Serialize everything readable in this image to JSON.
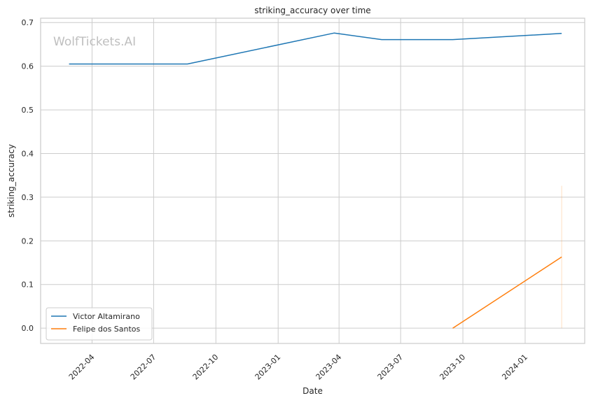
{
  "chart_data": {
    "type": "line",
    "title": "striking_accuracy over time",
    "xlabel": "Date",
    "ylabel": "striking_accuracy",
    "watermark": "WolfTickets.AI",
    "xlim": [
      "2022-01-15",
      "2024-03-29"
    ],
    "ylim": [
      -0.035,
      0.71
    ],
    "grid": true,
    "legend_position": "lower-left",
    "x_ticks": [
      {
        "date": "2022-04-01",
        "label": "2022-04"
      },
      {
        "date": "2022-07-01",
        "label": "2022-07"
      },
      {
        "date": "2022-10-01",
        "label": "2022-10"
      },
      {
        "date": "2023-01-01",
        "label": "2023-01"
      },
      {
        "date": "2023-04-01",
        "label": "2023-04"
      },
      {
        "date": "2023-07-01",
        "label": "2023-07"
      },
      {
        "date": "2023-10-01",
        "label": "2023-10"
      },
      {
        "date": "2024-01-01",
        "label": "2024-01"
      }
    ],
    "y_ticks": [
      {
        "value": 0.0,
        "label": "0.0"
      },
      {
        "value": 0.1,
        "label": "0.1"
      },
      {
        "value": 0.2,
        "label": "0.2"
      },
      {
        "value": 0.3,
        "label": "0.3"
      },
      {
        "value": 0.4,
        "label": "0.4"
      },
      {
        "value": 0.5,
        "label": "0.5"
      },
      {
        "value": 0.6,
        "label": "0.6"
      },
      {
        "value": 0.7,
        "label": "0.7"
      }
    ],
    "series": [
      {
        "name": "Victor Altamirano",
        "color": "#1f77b4",
        "points": [
          {
            "x": "2022-02-26",
            "y": 0.605
          },
          {
            "x": "2022-08-20",
            "y": 0.605
          },
          {
            "x": "2023-03-25",
            "y": 0.676
          },
          {
            "x": "2023-06-03",
            "y": 0.661
          },
          {
            "x": "2023-09-16",
            "y": 0.661
          },
          {
            "x": "2024-02-24",
            "y": 0.675
          }
        ]
      },
      {
        "name": "Felipe dos Santos",
        "color": "#ff7f0e",
        "points": [
          {
            "x": "2023-09-16",
            "y": 0.0
          },
          {
            "x": "2024-02-24",
            "y": 0.163
          }
        ],
        "band": {
          "x": "2024-02-24",
          "low": 0.0,
          "high": 0.326
        }
      }
    ]
  }
}
